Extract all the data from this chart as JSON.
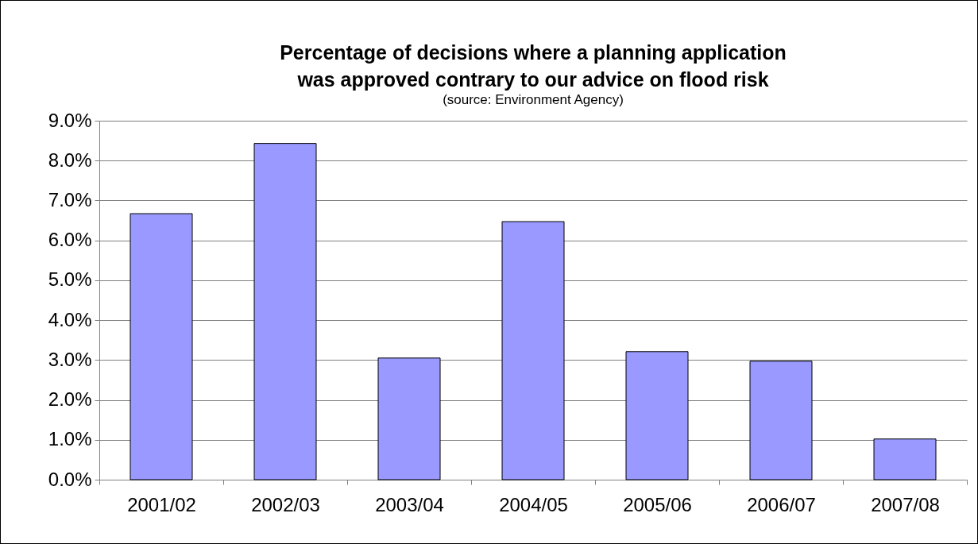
{
  "chart_data": {
    "type": "bar",
    "title": "Percentage of decisions where a planning application was approved contrary to our advice on flood risk",
    "subtitle": "(source: Environment Agency)",
    "categories": [
      "2001/02",
      "2002/03",
      "2003/04",
      "2004/05",
      "2005/06",
      "2006/07",
      "2007/08"
    ],
    "values": [
      6.67,
      8.43,
      3.05,
      6.47,
      3.21,
      2.97,
      1.02
    ],
    "color": "#9999ff",
    "ylim": [
      0,
      9
    ],
    "yticks": [
      {
        "value": 0,
        "label": "0.0%"
      },
      {
        "value": 1,
        "label": "1.0%"
      },
      {
        "value": 2,
        "label": "2.0%"
      },
      {
        "value": 3,
        "label": "3.0%"
      },
      {
        "value": 4,
        "label": "4.0%"
      },
      {
        "value": 5,
        "label": "5.0%"
      },
      {
        "value": 6,
        "label": "6.0%"
      },
      {
        "value": 7,
        "label": "7.0%"
      },
      {
        "value": 8,
        "label": "8.0%"
      },
      {
        "value": 9,
        "label": "9.0%"
      }
    ],
    "grid": "y"
  }
}
